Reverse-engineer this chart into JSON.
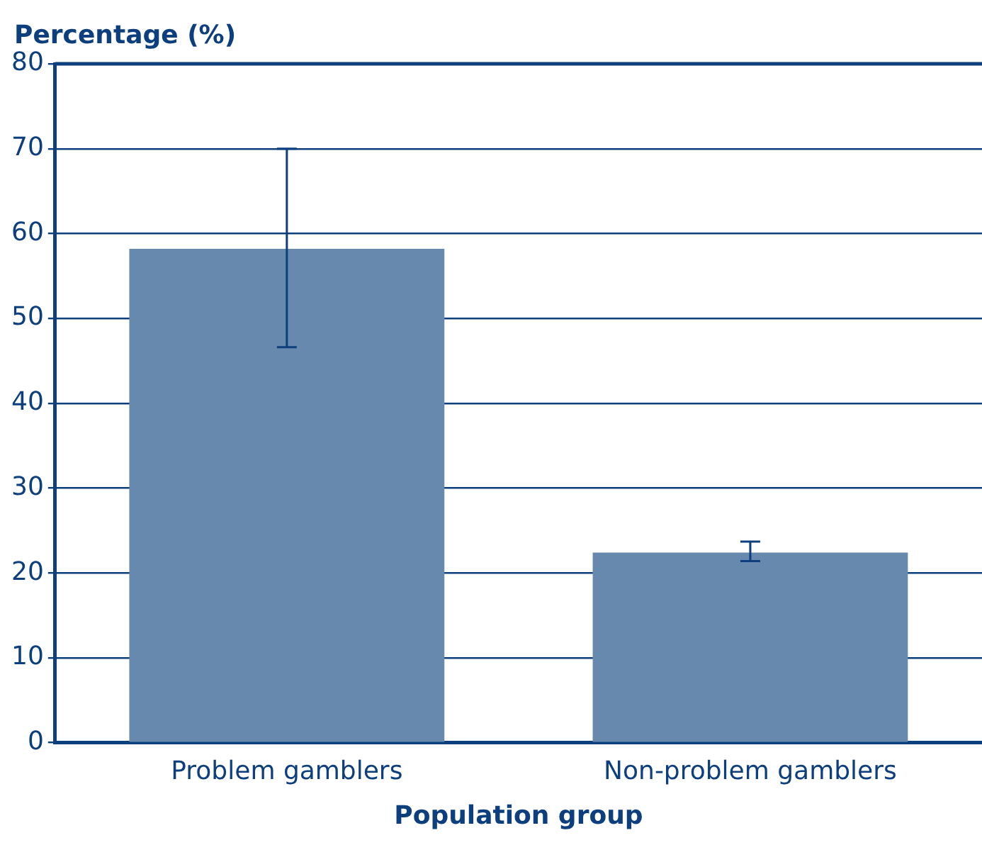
{
  "chart_data": {
    "type": "bar",
    "ylabel": "Percentage (%)",
    "xlabel": "Population group",
    "categories": [
      "Problem gamblers",
      "Non-problem gamblers"
    ],
    "series": [
      {
        "color": "#6789ae",
        "values": [
          58.2,
          22.4
        ],
        "errors": [
          [
            46.6,
            70
          ],
          [
            21.4,
            23.7
          ]
        ]
      }
    ],
    "ylim": [
      0,
      80
    ],
    "yticks": [
      0,
      10,
      20,
      30,
      40,
      50,
      60,
      70,
      80
    ],
    "grid": "y",
    "legend": false
  }
}
